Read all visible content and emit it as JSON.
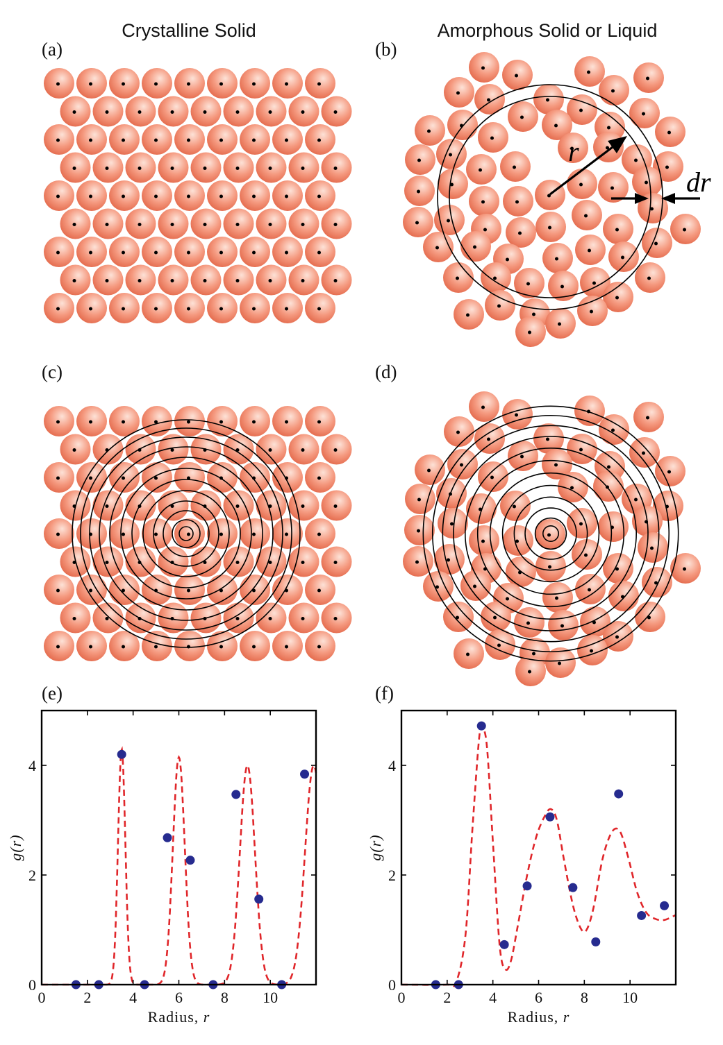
{
  "titles": {
    "left": "Crystalline Solid",
    "right": "Amorphous Solid or Liquid"
  },
  "panels": {
    "a": "(a)",
    "b": "(b)",
    "c": "(c)",
    "d": "(d)",
    "e": "(e)",
    "f": "(f)"
  },
  "annotations": {
    "r": "r",
    "dr": "dr"
  },
  "colors": {
    "atom_light": "#fde2d7",
    "atom_mid": "#f59a80",
    "atom_dark": "#e46a4c",
    "fit_line": "#e0262a",
    "points": "#262b8f"
  },
  "chart_data": [
    {
      "type": "scatter",
      "panel": "(e)",
      "xlabel": "Radius, r",
      "ylabel": "g(r)",
      "xlim": [
        0,
        12
      ],
      "ylim": [
        0,
        5
      ],
      "xticks": [
        0,
        2,
        4,
        6,
        8,
        10
      ],
      "yticks": [
        0,
        2,
        4
      ],
      "points": {
        "x": [
          1.5,
          2.5,
          3.5,
          4.5,
          5.5,
          6.5,
          7.5,
          8.5,
          9.5,
          10.5,
          11.5
        ],
        "y": [
          0,
          0,
          4.2,
          0,
          2.68,
          2.27,
          0,
          3.47,
          1.56,
          0,
          3.84
        ]
      },
      "fit": {
        "style": "dashed",
        "peaks": [
          {
            "x": 3.5,
            "amp": 4.3,
            "width": 0.16
          },
          {
            "x": 6.0,
            "amp": 4.15,
            "width": 0.26
          },
          {
            "x": 9.0,
            "amp": 4.0,
            "width": 0.33
          },
          {
            "x": 11.9,
            "amp": 4.0,
            "width": 0.38
          }
        ],
        "baseline": 0
      }
    },
    {
      "type": "scatter",
      "panel": "(f)",
      "xlabel": "Radius, r",
      "ylabel": "g(r)",
      "xlim": [
        0,
        12
      ],
      "ylim": [
        0,
        5
      ],
      "xticks": [
        0,
        2,
        4,
        6,
        8,
        10
      ],
      "yticks": [
        0,
        2,
        4
      ],
      "points": {
        "x": [
          1.5,
          2.5,
          3.5,
          4.5,
          5.5,
          6.5,
          7.5,
          8.5,
          9.5,
          10.5,
          11.5
        ],
        "y": [
          0,
          0,
          4.72,
          0.73,
          1.8,
          3.06,
          1.77,
          0.78,
          3.48,
          1.26,
          1.44
        ]
      },
      "fit": {
        "style": "dashed",
        "x": [
          0,
          2.0,
          2.4,
          2.8,
          3.1,
          3.4,
          3.55,
          3.75,
          4.0,
          4.3,
          4.55,
          4.8,
          5.1,
          5.5,
          5.9,
          6.3,
          6.55,
          6.8,
          7.1,
          7.5,
          7.85,
          8.1,
          8.4,
          8.8,
          9.2,
          9.55,
          9.9,
          10.3,
          10.7,
          11.1,
          11.5,
          12.0
        ],
        "y": [
          0,
          0,
          0.05,
          0.9,
          2.8,
          4.5,
          4.68,
          4.3,
          2.6,
          0.7,
          0.28,
          0.45,
          1.1,
          2.0,
          2.7,
          3.1,
          3.2,
          3.0,
          2.3,
          1.45,
          1.02,
          1.0,
          1.4,
          2.3,
          2.78,
          2.8,
          2.35,
          1.7,
          1.32,
          1.2,
          1.18,
          1.27
        ]
      }
    }
  ]
}
